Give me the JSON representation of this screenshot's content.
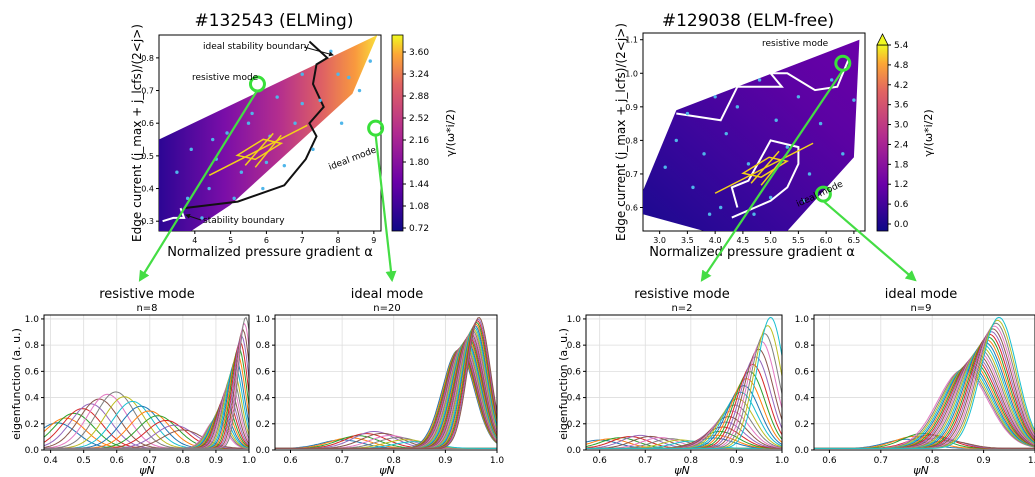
{
  "chart_data": [
    {
      "type": "heatmap",
      "title": "#132543 (ELMing)",
      "xlabel": "Normalized pressure gradient α",
      "ylabel": "Edge current (j_max + j_lcfs)/(2<j>)",
      "xlim": [
        3,
        9.2
      ],
      "ylim": [
        0.27,
        0.87
      ],
      "xticks": [
        "4",
        "5",
        "6",
        "7",
        "8",
        "9"
      ],
      "yticks": [
        "0.3",
        "0.4",
        "0.5",
        "0.6",
        "0.7",
        "0.8"
      ],
      "colorbar_label": "γ/(ω*i/2)",
      "colorbar_ticks": [
        "3.60",
        "3.24",
        "2.88",
        "2.52",
        "2.16",
        "1.80",
        "1.44",
        "1.08",
        "0.72"
      ],
      "annotations": [
        "ideal stability boundary",
        "resistive mode",
        "ideal mode",
        "stability boundary"
      ],
      "region": [
        [
          3,
          0.27
        ],
        [
          3.9,
          0.27
        ],
        [
          5,
          0.35
        ],
        [
          8.4,
          0.69
        ],
        [
          9.1,
          0.87
        ],
        [
          3,
          0.55
        ]
      ],
      "boundary_ideal": [
        [
          3.7,
          0.34
        ],
        [
          5.2,
          0.36
        ],
        [
          6.5,
          0.41
        ],
        [
          7.1,
          0.49
        ],
        [
          7.4,
          0.56
        ],
        [
          7.2,
          0.6
        ],
        [
          7.6,
          0.65
        ],
        [
          7.3,
          0.72
        ],
        [
          7.4,
          0.78
        ],
        [
          7.7,
          0.8
        ],
        [
          7.2,
          0.85
        ]
      ],
      "boundary_stab": [
        [
          3.1,
          0.3
        ],
        [
          3.4,
          0.31
        ],
        [
          3.7,
          0.31
        ],
        [
          3.6,
          0.34
        ]
      ],
      "operating_point": [
        5.8,
        0.52
      ],
      "resistive_point": [
        5.75,
        0.72
      ],
      "ideal_point": [
        9.05,
        0.585
      ],
      "scan_points": [
        [
          3.5,
          0.45
        ],
        [
          3.9,
          0.52
        ],
        [
          4.2,
          0.31
        ],
        [
          4.4,
          0.4
        ],
        [
          4.6,
          0.49
        ],
        [
          4.9,
          0.57
        ],
        [
          5.1,
          0.37
        ],
        [
          5.3,
          0.45
        ],
        [
          5.6,
          0.63
        ],
        [
          5.9,
          0.4
        ],
        [
          6.1,
          0.56
        ],
        [
          6.3,
          0.68
        ],
        [
          6.5,
          0.47
        ],
        [
          6.8,
          0.6
        ],
        [
          7,
          0.75
        ],
        [
          7.3,
          0.52
        ],
        [
          7.5,
          0.67
        ],
        [
          7.8,
          0.82
        ],
        [
          8.1,
          0.6
        ],
        [
          8.3,
          0.74
        ],
        [
          8.6,
          0.7
        ],
        [
          8.9,
          0.79
        ],
        [
          3.8,
          0.37
        ],
        [
          4.5,
          0.55
        ],
        [
          5.5,
          0.6
        ],
        [
          6,
          0.48
        ],
        [
          7,
          0.66
        ],
        [
          8,
          0.75
        ]
      ]
    },
    {
      "type": "heatmap",
      "title": "#129038 (ELM-free)",
      "xlabel": "Normalized pressure gradient α",
      "ylabel": "Edge current (j_max + j_lcfs)/(2<j>)",
      "xlim": [
        2.7,
        6.7
      ],
      "ylim": [
        0.53,
        1.12
      ],
      "xticks": [
        "3.0",
        "3.5",
        "4.0",
        "4.5",
        "5.0",
        "5.5",
        "6.0",
        "6.5"
      ],
      "yticks": [
        "0.6",
        "0.7",
        "0.8",
        "0.9",
        "1.0",
        "1.1"
      ],
      "colorbar_label": "γ/(ω*i/2)",
      "colorbar_ticks": [
        "5.4",
        "4.8",
        "4.2",
        "3.6",
        "3.0",
        "2.4",
        "1.8",
        "1.2",
        "0.6",
        "0.0"
      ],
      "annotations": [
        "resistive mode",
        "ideal mode"
      ],
      "region": [
        [
          2.7,
          0.58
        ],
        [
          2.7,
          0.65
        ],
        [
          3.3,
          0.89
        ],
        [
          6.6,
          1.1
        ],
        [
          6.5,
          0.75
        ],
        [
          5.3,
          0.53
        ],
        [
          3.8,
          0.53
        ]
      ],
      "boundary_1": [
        [
          3.3,
          0.88
        ],
        [
          4.1,
          0.86
        ],
        [
          4.4,
          0.96
        ],
        [
          5.2,
          0.96
        ],
        [
          5.0,
          1.0
        ],
        [
          5.3,
          1.0
        ],
        [
          5.8,
          0.95
        ],
        [
          6.2,
          0.96
        ],
        [
          6.4,
          1.04
        ]
      ],
      "boundary_2": [
        [
          4.3,
          0.57
        ],
        [
          5.0,
          0.62
        ],
        [
          5.3,
          0.66
        ],
        [
          5.5,
          0.73
        ],
        [
          5.5,
          0.78
        ],
        [
          5.0,
          0.8
        ],
        [
          4.9,
          0.77
        ],
        [
          4.6,
          0.68
        ],
        [
          4.3,
          0.66
        ],
        [
          4.4,
          0.6
        ]
      ],
      "operating_point": [
        4.9,
        0.72
      ],
      "resistive_point": [
        6.3,
        1.03
      ],
      "ideal_point": [
        5.95,
        0.64
      ],
      "scan_points": [
        [
          3.1,
          0.72
        ],
        [
          3.3,
          0.8
        ],
        [
          3.5,
          0.88
        ],
        [
          3.6,
          0.66
        ],
        [
          3.8,
          0.76
        ],
        [
          4,
          0.93
        ],
        [
          4.1,
          0.6
        ],
        [
          4.2,
          0.82
        ],
        [
          4.4,
          0.9
        ],
        [
          4.6,
          0.73
        ],
        [
          4.8,
          0.98
        ],
        [
          5,
          0.63
        ],
        [
          5.1,
          0.86
        ],
        [
          5.3,
          0.78
        ],
        [
          5.5,
          0.93
        ],
        [
          5.7,
          0.7
        ],
        [
          5.9,
          0.85
        ],
        [
          6.1,
          0.98
        ],
        [
          6.3,
          0.76
        ],
        [
          6.5,
          0.92
        ],
        [
          3.9,
          0.58
        ],
        [
          4.7,
          0.58
        ],
        [
          5.6,
          0.62
        ]
      ]
    },
    {
      "type": "line",
      "title": "resistive mode",
      "subtitle": "n=8",
      "xlabel": "ψN",
      "ylabel": "eigenfunction (a. u.)",
      "xlim": [
        0.38,
        1.0
      ],
      "ylim": [
        0,
        1.03
      ],
      "xticks": [
        "0.4",
        "0.5",
        "0.6",
        "0.7",
        "0.8",
        "0.9",
        "1.0"
      ],
      "yticks": [
        "0.0",
        "0.2",
        "0.4",
        "0.6",
        "0.8",
        "1.0"
      ],
      "family": {
        "pre": {
          "count": 16,
          "start": 0.42,
          "end": 0.8,
          "width": 0.06,
          "peak_max": 0.44,
          "peak_min": 0.1
        },
        "post": {
          "count": 22,
          "start": 0.9,
          "end": 0.99,
          "width": 0.022,
          "peak_max": 1.0,
          "peak_min": 0.22
        }
      }
    },
    {
      "type": "line",
      "title": "ideal mode",
      "subtitle": "n=20",
      "xlabel": "ψN",
      "ylabel": "",
      "xlim": [
        0.57,
        1.0
      ],
      "ylim": [
        0,
        1.03
      ],
      "xticks": [
        "0.6",
        "0.7",
        "0.8",
        "0.9",
        "1.0"
      ],
      "yticks": [
        "0.0",
        "0.2",
        "0.4",
        "0.6",
        "0.8",
        "1.0"
      ],
      "family": {
        "pre": {
          "count": 10,
          "start": 0.7,
          "end": 0.84,
          "width": 0.04,
          "peak_max": 0.13,
          "peak_min": 0.04
        },
        "post": {
          "count": 26,
          "start": 0.925,
          "end": 0.965,
          "width": 0.022,
          "peak_max": 1.0,
          "peak_min": 0.75
        }
      }
    },
    {
      "type": "line",
      "title": "resistive mode",
      "subtitle": "n=2",
      "xlabel": "ψN",
      "ylabel": "eigenfunction (a. u.)",
      "xlim": [
        0.57,
        1.0
      ],
      "ylim": [
        0,
        1.03
      ],
      "xticks": [
        "0.6",
        "0.7",
        "0.8",
        "0.9",
        "1.0"
      ],
      "yticks": [
        "0.0",
        "0.2",
        "0.4",
        "0.6",
        "0.8",
        "1.0"
      ],
      "family": {
        "pre": {
          "count": 10,
          "start": 0.6,
          "end": 0.8,
          "width": 0.04,
          "peak_max": 0.1,
          "peak_min": 0.05
        },
        "post": {
          "count": 20,
          "start": 0.85,
          "end": 0.975,
          "width": 0.03,
          "peak_max": 1.0,
          "peak_min": 0.08
        }
      }
    },
    {
      "type": "line",
      "title": "ideal mode",
      "subtitle": "n=9",
      "xlabel": "ψN",
      "ylabel": "",
      "xlim": [
        0.57,
        1.0
      ],
      "ylim": [
        0,
        1.03
      ],
      "xticks": [
        "0.6",
        "0.7",
        "0.8",
        "0.9",
        "1.0"
      ],
      "yticks": [
        "0.0",
        "0.2",
        "0.4",
        "0.6",
        "0.8",
        "1.0"
      ],
      "family": {
        "pre": {
          "count": 6,
          "start": 0.75,
          "end": 0.83,
          "width": 0.04,
          "peak_max": 0.12,
          "peak_min": 0.05
        },
        "post": {
          "count": 24,
          "start": 0.86,
          "end": 0.93,
          "width": 0.035,
          "peak_max": 1.0,
          "peak_min": 0.6
        }
      }
    }
  ],
  "colors": {
    "scan_point": "#4fb6ea",
    "highlight_circle": "#39e03a",
    "arrow": "#44dd44",
    "operating_cross": "#f3d21a",
    "boundary_dark": "#111111",
    "boundary_light": "#ffffff",
    "line_palette": [
      "#1f77b4",
      "#ff7f0e",
      "#2ca02c",
      "#d62728",
      "#9467bd",
      "#8c564b",
      "#e377c2",
      "#7f7f7f",
      "#bcbd22",
      "#17becf"
    ]
  }
}
